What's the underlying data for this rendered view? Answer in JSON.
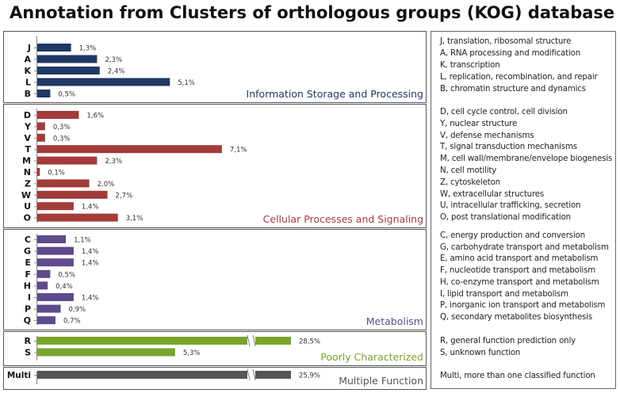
{
  "title": "Annotation from Clusters of orthologous groups (KOG) database",
  "chart_data": {
    "type": "bar",
    "orientation": "horizontal",
    "value_unit": "%",
    "groups": [
      {
        "name": "Information Storage and Processing",
        "color": "#1f3864",
        "items": [
          {
            "code": "J",
            "value": 1.3,
            "label": "1,3%",
            "description": "J, translation, ribosomal structure"
          },
          {
            "code": "A",
            "value": 2.3,
            "label": "2,3%",
            "description": "A, RNA processing and modification"
          },
          {
            "code": "K",
            "value": 2.4,
            "label": "2,4%",
            "description": "K, transcription"
          },
          {
            "code": "L",
            "value": 5.1,
            "label": "5,1%",
            "description": "L, replication, recombination, and repair"
          },
          {
            "code": "B",
            "value": 0.5,
            "label": "0,5%",
            "description": "B, chromatin structure and dynamics"
          }
        ]
      },
      {
        "name": "Cellular Processes and Signaling",
        "color": "#a33b3b",
        "items": [
          {
            "code": "D",
            "value": 1.6,
            "label": "1,6%",
            "description": "D, cell cycle control, cell division"
          },
          {
            "code": "Y",
            "value": 0.3,
            "label": "0,3%",
            "description": "Y, nuclear structure"
          },
          {
            "code": "V",
            "value": 0.3,
            "label": "0,3%",
            "description": "V, defense mechanisms"
          },
          {
            "code": "T",
            "value": 7.1,
            "label": "7,1%",
            "description": "T, signal transduction mechanisms"
          },
          {
            "code": "M",
            "value": 2.3,
            "label": "2,3%",
            "description": "M, cell wall/membrane/envelope biogenesis"
          },
          {
            "code": "N",
            "value": 0.1,
            "label": "0,1%",
            "description": "N, cell motility"
          },
          {
            "code": "Z",
            "value": 2.0,
            "label": "2,0%",
            "description": "Z, cytoskeleton"
          },
          {
            "code": "W",
            "value": 2.7,
            "label": "2,7%",
            "description": "W, extracellular structures"
          },
          {
            "code": "U",
            "value": 1.4,
            "label": "1,4%",
            "description": "U, intracellular trafficking, secretion"
          },
          {
            "code": "O",
            "value": 3.1,
            "label": "3,1%",
            "description": "O, post translational modification"
          }
        ]
      },
      {
        "name": "Metabolism",
        "color": "#5e4a8c",
        "items": [
          {
            "code": "C",
            "value": 1.1,
            "label": "1,1%",
            "description": "C, energy production and conversion"
          },
          {
            "code": "G",
            "value": 1.4,
            "label": "1,4%",
            "description": "G, carbohydrate transport and metabolism"
          },
          {
            "code": "E",
            "value": 1.4,
            "label": "1,4%",
            "description": "E, amino acid transport and metabolism"
          },
          {
            "code": "F",
            "value": 0.5,
            "label": "0,5%",
            "description": "F, nucleotide transport and metabolism"
          },
          {
            "code": "H",
            "value": 0.4,
            "label": "0,4%",
            "description": "H, co-enzyme transport and metabolism"
          },
          {
            "code": "I",
            "value": 1.4,
            "label": "1,4%",
            "description": "I, lipid transport and metabolism"
          },
          {
            "code": "P",
            "value": 0.9,
            "label": "0,9%",
            "description": "P, inorganic ion transport and metabolism"
          },
          {
            "code": "Q",
            "value": 0.7,
            "label": "0,7%",
            "description": "Q, secondary metabolites biosynthesis"
          }
        ]
      },
      {
        "name": "Poorly Characterized",
        "color": "#77a52c",
        "items": [
          {
            "code": "R",
            "value": 28.5,
            "label": "28,5%",
            "broken_axis": true,
            "description": "R, general function prediction only"
          },
          {
            "code": "S",
            "value": 5.3,
            "label": "5,3%",
            "description": "S, unknown function"
          }
        ]
      },
      {
        "name": "Multiple Function",
        "color": "#555555",
        "items": [
          {
            "code": "Multi",
            "value": 25.9,
            "label": "25,9%",
            "broken_axis": true,
            "description": "Multi, more than one classified function"
          }
        ]
      }
    ]
  }
}
